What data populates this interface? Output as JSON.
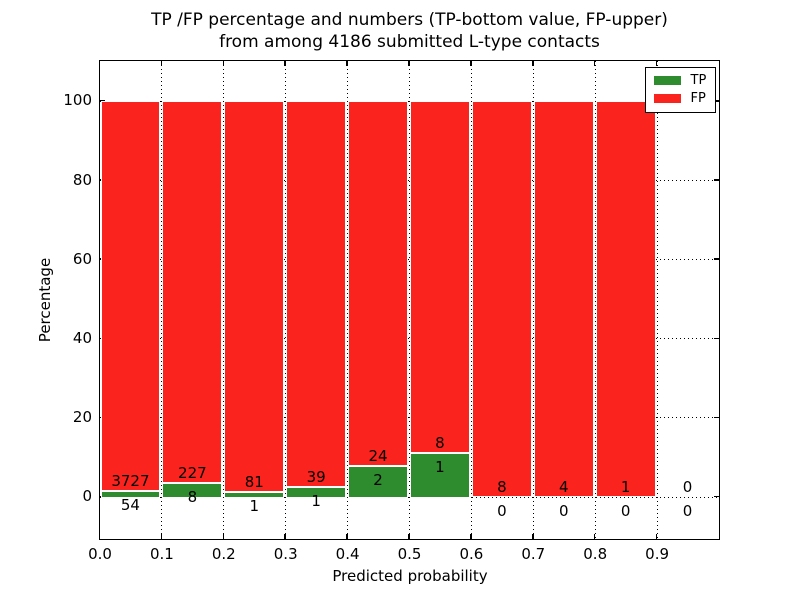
{
  "title": {
    "line1": "TP /FP percentage and numbers (TP-bottom value, FP-upper)",
    "line2": "from among 4186 submitted L-type contacts"
  },
  "axes": {
    "xlabel": "Predicted probability",
    "ylabel": "Percentage"
  },
  "colors": {
    "tp_green": "#2e8b2e",
    "fp_red": "#fb231d",
    "grid": "#000000",
    "background": "#ffffff"
  },
  "legend": {
    "position": "upper right",
    "items": [
      {
        "label": "TP",
        "color": "#2e8b2e"
      },
      {
        "label": "FP",
        "color": "#fb231d"
      }
    ]
  },
  "chart_data": {
    "type": "bar",
    "stacked": true,
    "normalized": "each bin scaled to 100%",
    "title": "TP /FP percentage and numbers (TP-bottom value, FP-upper) from among 4186 submitted L-type contacts",
    "xlabel": "Predicted probability",
    "ylabel": "Percentage",
    "total_submitted_contacts": 4186,
    "bin_width": 0.1,
    "categories": [
      "0.0-0.1",
      "0.1-0.2",
      "0.2-0.3",
      "0.3-0.4",
      "0.4-0.5",
      "0.5-0.6",
      "0.6-0.7",
      "0.7-0.8",
      "0.8-0.9",
      "0.9-1.0"
    ],
    "bin_starts": [
      0.0,
      0.1,
      0.2,
      0.3,
      0.4,
      0.5,
      0.6,
      0.7,
      0.8,
      0.9
    ],
    "series": [
      {
        "name": "TP",
        "color": "#2e8b2e",
        "counts": [
          54,
          8,
          1,
          1,
          2,
          1,
          0,
          0,
          0,
          0
        ]
      },
      {
        "name": "FP",
        "color": "#fb231d",
        "counts": [
          3727,
          227,
          81,
          39,
          24,
          8,
          8,
          4,
          1,
          0
        ]
      }
    ],
    "tp_percent": [
      1.43,
      3.4,
      1.22,
      2.5,
      7.69,
      11.11,
      0,
      0,
      0,
      0
    ],
    "fp_percent": [
      98.57,
      96.6,
      98.78,
      97.5,
      92.31,
      88.89,
      100,
      100,
      100,
      0
    ],
    "xticks": [
      0.0,
      0.1,
      0.2,
      0.3,
      0.4,
      0.5,
      0.6,
      0.7,
      0.8,
      0.9
    ],
    "xtick_labels": [
      "0.0",
      "0.1",
      "0.2",
      "0.3",
      "0.4",
      "0.5",
      "0.6",
      "0.7",
      "0.8",
      "0.9"
    ],
    "yticks": [
      0,
      20,
      40,
      60,
      80,
      100
    ],
    "ytick_labels": [
      "0",
      "20",
      "40",
      "60",
      "80",
      "100"
    ],
    "xlim": [
      0.0,
      1.0
    ],
    "ylim": [
      -10.6,
      110.2
    ],
    "grid": "dotted, both axes",
    "legend_position": "upper right"
  }
}
